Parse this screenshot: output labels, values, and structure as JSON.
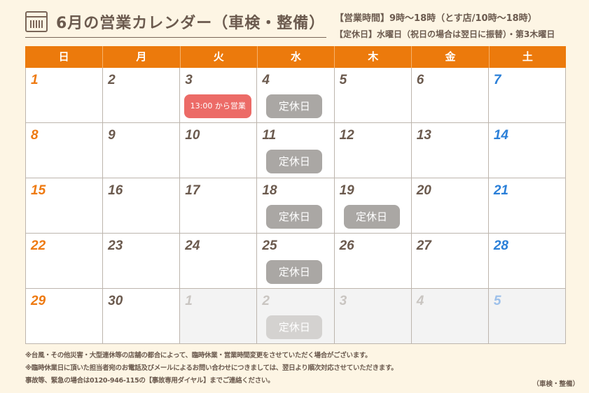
{
  "title": "6月の営業カレンダー（車検・整備）",
  "hours": [
    "【営業時間】9時～18時（とす店/10時～18時）",
    "【定休日】水曜日（祝日の場合は翌日に振替）・第3木曜日"
  ],
  "weekdays": [
    "日",
    "月",
    "火",
    "水",
    "木",
    "金",
    "土"
  ],
  "colors": {
    "header": "#ec7a0c",
    "sunday": "#ee7a12",
    "saturday": "#2a7fd8",
    "closed_badge": "#aaa7a4",
    "open_badge": "#ec6b67",
    "text": "#6b5a4e"
  },
  "days": [
    {
      "day": "1"
    },
    {
      "day": "2"
    },
    {
      "day": "3",
      "badge": "13:00 から営業",
      "badge_type": "open"
    },
    {
      "day": "4",
      "badge": "定休日"
    },
    {
      "day": "5"
    },
    {
      "day": "6"
    },
    {
      "day": "7"
    },
    {
      "day": "8"
    },
    {
      "day": "9"
    },
    {
      "day": "10"
    },
    {
      "day": "11",
      "badge": "定休日"
    },
    {
      "day": "12"
    },
    {
      "day": "13"
    },
    {
      "day": "14"
    },
    {
      "day": "15"
    },
    {
      "day": "16"
    },
    {
      "day": "17"
    },
    {
      "day": "18",
      "badge": "定休日"
    },
    {
      "day": "19",
      "badge": "定休日"
    },
    {
      "day": "20"
    },
    {
      "day": "21"
    },
    {
      "day": "22"
    },
    {
      "day": "23"
    },
    {
      "day": "24"
    },
    {
      "day": "25",
      "badge": "定休日"
    },
    {
      "day": "26"
    },
    {
      "day": "27"
    },
    {
      "day": "28"
    },
    {
      "day": "29"
    },
    {
      "day": "30"
    },
    {
      "day": "1",
      "other": true
    },
    {
      "day": "2",
      "other": true,
      "badge": "定休日"
    },
    {
      "day": "3",
      "other": true
    },
    {
      "day": "4",
      "other": true
    },
    {
      "day": "5",
      "other": true
    }
  ],
  "notes": [
    "※台風・その他災害・大型連休等の店舗の都合によって、臨時休業・営業時間変更をさせていただく場合がございます。",
    "※臨時休業日に頂いた担当者宛のお電話及びメールによるお問い合わせにつきましては、翌日より順次対応させていただきます。",
    "事故等、緊急の場合は0120-946-115の【事故専用ダイヤル】までご連絡ください。"
  ],
  "footer": "（車検・整備）"
}
